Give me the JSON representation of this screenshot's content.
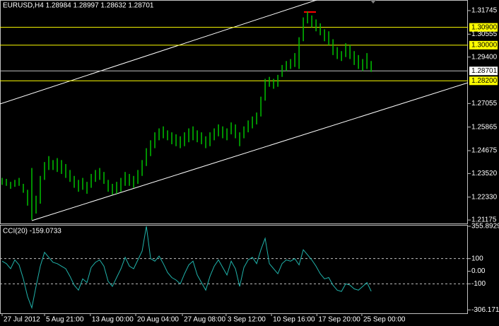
{
  "chart_data": [
    {
      "type": "ohlc",
      "title": "EURUSD,H4  1.28984 1.28997 1.28632 1.28701",
      "color": "#00c000",
      "xlim": [
        -0.5,
        109.8
      ],
      "ylim": [
        1.21,
        1.3228
      ],
      "yticks": [
        1.31745,
        1.30555,
        {
          "value": 1.294,
          "label": "1.29400"
        },
        1.27055,
        1.25865,
        1.24675,
        {
          "value": 1.2352,
          "label": "1.23520"
        },
        {
          "value": 1.2233,
          "label": "1.22330"
        },
        1.21175
      ],
      "levels": [
        {
          "value": 1.309,
          "label": "1.30900",
          "color": "#ffff00"
        },
        {
          "value": 1.3,
          "label": "1.30000",
          "color": "#ffff00"
        },
        {
          "value": 1.28701,
          "label": "1.28701",
          "color": "#c0c0c0"
        },
        {
          "value": 1.282,
          "label": "1.28200",
          "color": "#ffff00"
        }
      ],
      "high": [
        1.233,
        1.2325,
        1.231,
        1.232,
        1.233,
        1.23,
        1.227,
        1.238,
        1.224,
        1.234,
        1.241,
        1.244,
        1.242,
        1.243,
        1.242,
        1.24,
        1.237,
        1.234,
        1.232,
        1.233,
        1.231,
        1.235,
        1.237,
        1.238,
        1.236,
        1.232,
        1.23,
        1.231,
        1.233,
        1.236,
        1.235,
        1.234,
        1.237,
        1.242,
        1.248,
        1.252,
        1.256,
        1.258,
        1.259,
        1.257,
        1.256,
        1.255,
        1.254,
        1.256,
        1.258,
        1.259,
        1.257,
        1.256,
        1.254,
        1.256,
        1.258,
        1.26,
        1.259,
        1.258,
        1.261,
        1.26,
        1.256,
        1.259,
        1.262,
        1.264,
        1.266,
        1.274,
        1.283,
        1.284,
        1.283,
        1.285,
        1.29,
        1.292,
        1.293,
        1.296,
        1.304,
        1.314,
        1.317,
        1.315,
        1.313,
        1.311,
        1.308,
        1.307,
        1.303,
        1.299,
        1.297,
        1.301,
        1.3,
        1.297,
        1.295,
        1.293,
        1.296,
        1.292
      ],
      "low": [
        1.2295,
        1.229,
        1.2275,
        1.2285,
        1.229,
        1.2255,
        1.219,
        1.2118,
        1.215,
        1.22,
        1.232,
        1.237,
        1.237,
        1.236,
        1.235,
        1.233,
        1.231,
        1.228,
        1.226,
        1.227,
        1.225,
        1.228,
        1.231,
        1.232,
        1.23,
        1.226,
        1.2245,
        1.225,
        1.226,
        1.229,
        1.229,
        1.228,
        1.23,
        1.234,
        1.239,
        1.244,
        1.248,
        1.252,
        1.253,
        1.252,
        1.25,
        1.249,
        1.248,
        1.249,
        1.251,
        1.252,
        1.251,
        1.25,
        1.248,
        1.249,
        1.252,
        1.254,
        1.253,
        1.252,
        1.255,
        1.253,
        1.249,
        1.253,
        1.256,
        1.258,
        1.26,
        1.264,
        1.272,
        1.279,
        1.278,
        1.279,
        1.284,
        1.287,
        1.288,
        1.289,
        1.288,
        1.302,
        1.311,
        1.309,
        1.307,
        1.305,
        1.302,
        1.3,
        1.295,
        1.293,
        1.292,
        1.294,
        1.293,
        1.29,
        1.288,
        1.287,
        1.288,
        1.2865
      ]
    },
    {
      "type": "line",
      "title": "CCI(20) -159.0733",
      "color": "#20b2aa",
      "xlim": [
        -0.5,
        109.8
      ],
      "ylim": [
        -333,
        367
      ],
      "yticks": [
        355.8929,
        100,
        {
          "value": 0,
          "label": "0.00"
        },
        -100,
        -306.171
      ],
      "dashed_levels": [
        100,
        -100
      ],
      "xticks": [
        {
          "value": 0,
          "label": "27 Jul 2012"
        },
        {
          "value": 10,
          "label": "5 Aug 21:00"
        },
        {
          "value": 20.8,
          "label": "13 Aug 00:00"
        },
        {
          "value": 31.5,
          "label": "20 Aug 04:00"
        },
        {
          "value": 42.5,
          "label": "27 Aug 08:00"
        },
        {
          "value": 52.8,
          "label": "3 Sep 12:00"
        },
        {
          "value": 63.5,
          "label": "10 Sep 16:00"
        },
        {
          "value": 74.2,
          "label": "17 Sep 20:00"
        },
        {
          "value": 84.8,
          "label": "25 Sep 00:00"
        }
      ],
      "values": [
        80,
        60,
        20,
        90,
        50,
        -60,
        -200,
        -290,
        -120,
        40,
        150,
        110,
        70,
        60,
        40,
        20,
        -40,
        -110,
        -150,
        -60,
        -90,
        30,
        70,
        90,
        40,
        -80,
        -120,
        -50,
        20,
        110,
        40,
        20,
        90,
        160,
        356,
        100,
        80,
        120,
        60,
        -10,
        -50,
        -70,
        -100,
        -20,
        50,
        80,
        -30,
        -90,
        -150,
        -40,
        40,
        90,
        30,
        -30,
        80,
        20,
        -120,
        30,
        90,
        110,
        60,
        170,
        260,
        60,
        20,
        -20,
        60,
        90,
        80,
        100,
        50,
        170,
        130,
        90,
        40,
        -20,
        -60,
        -50,
        -110,
        -150,
        -160,
        -100,
        -110,
        -140,
        -150,
        -120,
        -90,
        -159
      ]
    }
  ]
}
